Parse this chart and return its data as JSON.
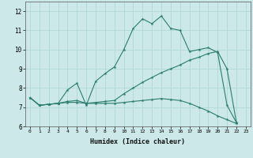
{
  "xlabel": "Humidex (Indice chaleur)",
  "xlim": [
    -0.5,
    23.5
  ],
  "ylim": [
    6,
    12.5
  ],
  "yticks": [
    6,
    7,
    8,
    9,
    10,
    11,
    12
  ],
  "xticks": [
    0,
    1,
    2,
    3,
    4,
    5,
    6,
    7,
    8,
    9,
    10,
    11,
    12,
    13,
    14,
    15,
    16,
    17,
    18,
    19,
    20,
    21,
    22,
    23
  ],
  "bg_color": "#cce8e8",
  "grid_color": "#b0d8d8",
  "line_color": "#2a7d6e",
  "line1_x": [
    0,
    1,
    2,
    3,
    4,
    5,
    6,
    7,
    8,
    9,
    10,
    11,
    12,
    13,
    14,
    15,
    16,
    17,
    18,
    19,
    20,
    21,
    22
  ],
  "line1_y": [
    7.5,
    7.1,
    7.15,
    7.2,
    7.9,
    8.25,
    7.1,
    8.35,
    8.75,
    9.1,
    10.0,
    11.1,
    11.6,
    11.35,
    11.75,
    11.1,
    11.0,
    9.9,
    10.0,
    10.1,
    9.85,
    7.1,
    6.2
  ],
  "line2_x": [
    0,
    1,
    2,
    3,
    4,
    5,
    6,
    7,
    8,
    9,
    10,
    11,
    12,
    13,
    14,
    15,
    16,
    17,
    18,
    19,
    20,
    21,
    22
  ],
  "line2_y": [
    7.5,
    7.1,
    7.15,
    7.2,
    7.3,
    7.35,
    7.2,
    7.25,
    7.3,
    7.35,
    7.7,
    8.0,
    8.3,
    8.55,
    8.8,
    9.0,
    9.2,
    9.45,
    9.6,
    9.8,
    9.9,
    9.0,
    6.2
  ],
  "line3_x": [
    0,
    1,
    2,
    3,
    4,
    5,
    6,
    7,
    8,
    9,
    10,
    11,
    12,
    13,
    14,
    15,
    16,
    17,
    18,
    19,
    20,
    21,
    22
  ],
  "line3_y": [
    7.5,
    7.1,
    7.15,
    7.2,
    7.25,
    7.25,
    7.2,
    7.2,
    7.2,
    7.2,
    7.25,
    7.3,
    7.35,
    7.4,
    7.45,
    7.4,
    7.35,
    7.2,
    7.0,
    6.8,
    6.55,
    6.35,
    6.15
  ]
}
